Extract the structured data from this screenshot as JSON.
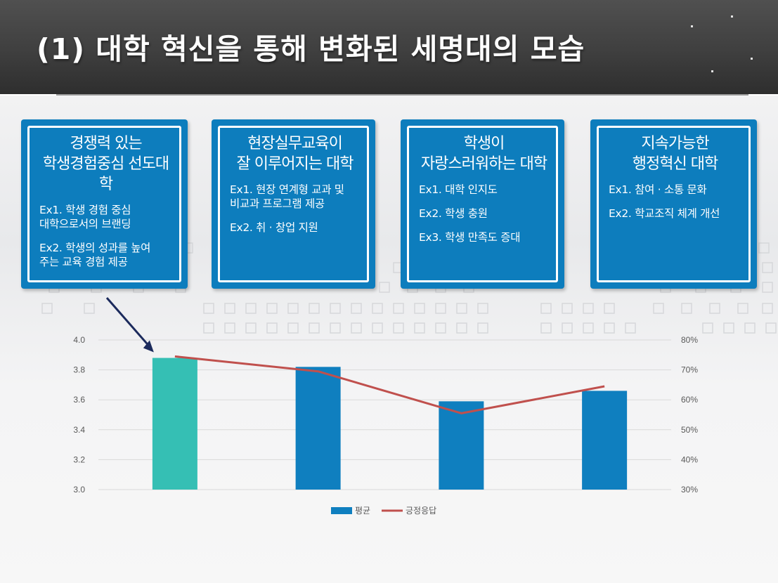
{
  "header": {
    "title": "(1) 대학 혁신을 통해 변화된 세명대의 모습"
  },
  "cards": [
    {
      "title_lines": [
        "경쟁력 있는",
        "학생경험중심 선도대학"
      ],
      "items": [
        [
          "Ex1. 학생 경험 중심",
          "대학으로서의 브랜딩"
        ],
        [
          "Ex2. 학생의 성과를 높여",
          "주는 교육 경험 제공"
        ]
      ]
    },
    {
      "title_lines": [
        "현장실무교육이",
        "잘 이루어지는 대학"
      ],
      "items": [
        [
          "Ex1. 현장 연계형 교과 및",
          "비교과 프로그램 제공"
        ],
        [
          "Ex2. 취 · 창업 지원"
        ]
      ]
    },
    {
      "title_lines": [
        "학생이",
        "자랑스러워하는 대학"
      ],
      "items": [
        [
          "Ex1. 대학 인지도"
        ],
        [
          "Ex2. 학생 충원"
        ],
        [
          "Ex3. 학생 만족도 증대"
        ]
      ]
    },
    {
      "title_lines": [
        "지속가능한",
        "행정혁신 대학"
      ],
      "items": [
        [
          "Ex1. 참여 · 소통 문화"
        ],
        [
          "Ex2. 학교조직 체계 개선"
        ]
      ]
    }
  ],
  "chart_data": {
    "type": "bar",
    "categories": [
      "",
      "",
      "",
      ""
    ],
    "series": [
      {
        "name": "평균",
        "type": "bar",
        "axis": "left",
        "values": [
          3.88,
          3.82,
          3.59,
          3.66
        ],
        "colors": [
          "#35bfb4",
          "#0f7fbf",
          "#0f7fbf",
          "#0f7fbf"
        ]
      },
      {
        "name": "긍정응답",
        "type": "line",
        "axis": "right",
        "values": [
          0.745,
          0.695,
          0.555,
          0.645
        ],
        "color": "#c0504d"
      }
    ],
    "y_left": {
      "min": 3.0,
      "max": 4.0,
      "ticks": [
        "4.0",
        "3.8",
        "3.6",
        "3.4",
        "3.2",
        "3.0"
      ]
    },
    "y_right": {
      "min": 0.3,
      "max": 0.8,
      "ticks": [
        "80%",
        "70%",
        "60%",
        "50%",
        "40%",
        "30%"
      ]
    },
    "legend": {
      "position": "bottom",
      "items": [
        "평균",
        "긍정응답"
      ]
    },
    "grid": true,
    "highlight_index": 0
  },
  "colors": {
    "header_bg": "#444444",
    "card_bg": "#0d7dbd",
    "bar": "#0f7fbf",
    "bar_highlight": "#35bfb4",
    "line": "#c0504d",
    "arrow": "#1b2a5c"
  }
}
